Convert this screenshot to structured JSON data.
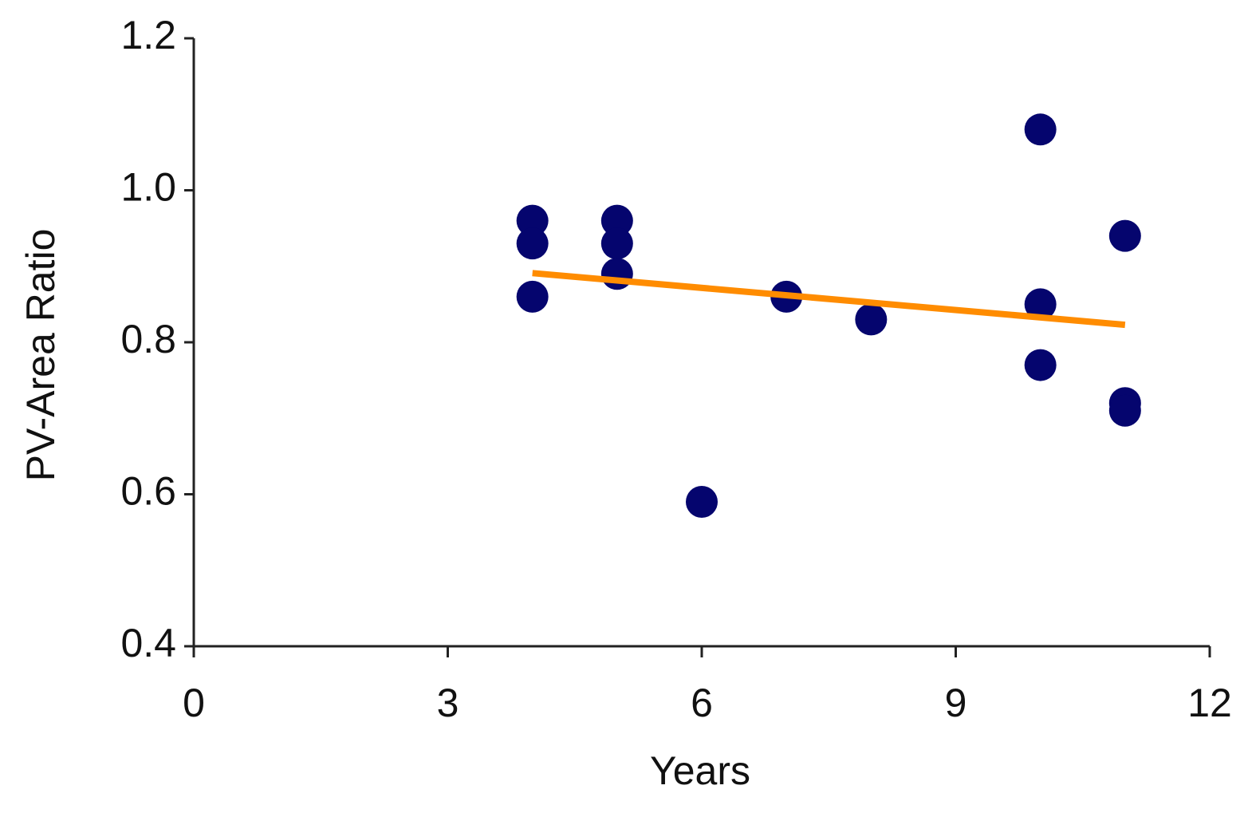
{
  "chart_data": {
    "type": "scatter",
    "x_label": "Years",
    "y_label": "PV-Area Ratio",
    "x": [
      4,
      4,
      4,
      5,
      5,
      5,
      6,
      7,
      8,
      10,
      10,
      10,
      11,
      11,
      11
    ],
    "values": [
      0.96,
      0.93,
      0.86,
      0.96,
      0.93,
      0.89,
      0.59,
      0.86,
      0.83,
      1.08,
      0.85,
      0.77,
      0.94,
      0.72,
      0.71
    ],
    "color": "#05056e",
    "trendline": {
      "x": [
        4,
        11
      ],
      "values": [
        0.891,
        0.823
      ],
      "color": "#ff8c00"
    },
    "xlim": [
      0,
      12
    ],
    "xticks": [
      0,
      3,
      6,
      9,
      12
    ],
    "ylim": [
      0.4,
      1.2
    ],
    "yticks": [
      0.4,
      0.6,
      0.8,
      {
        "value": 1,
        "label": "1.0"
      },
      1.2
    ],
    "grid": false
  }
}
